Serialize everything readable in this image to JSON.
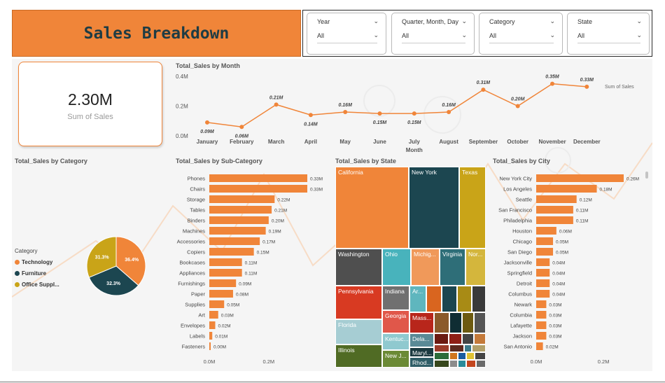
{
  "header": {
    "title": "Sales Breakdown"
  },
  "slicers": [
    {
      "label": "Year",
      "value": "All"
    },
    {
      "label": "Quarter, Month, Day",
      "value": "All"
    },
    {
      "label": "Category",
      "value": "All"
    },
    {
      "label": "State",
      "value": "All"
    }
  ],
  "kpi": {
    "value": "2.30M",
    "label": "Sum of Sales"
  },
  "colors": {
    "orange": "#f08539",
    "teal": "#1c4650",
    "gold": "#c9a418"
  },
  "month_chart": {
    "title": "Total_Sales by Month",
    "legend_label": "Sum of Sales",
    "xlabel": "Month",
    "y_ticks": [
      "0.4M",
      "0.2M",
      "0.0M"
    ],
    "chart_data": {
      "type": "line",
      "categories": [
        "January",
        "February",
        "March",
        "April",
        "May",
        "June",
        "July",
        "August",
        "September",
        "October",
        "November",
        "December"
      ],
      "values": [
        0.09,
        0.06,
        0.21,
        0.14,
        0.16,
        0.15,
        0.15,
        0.16,
        0.31,
        0.2,
        0.35,
        0.33
      ],
      "labels": [
        "0.09M",
        "0.06M",
        "0.21M",
        "0.14M",
        "0.16M",
        "0.15M",
        "0.15M",
        "0.16M",
        "0.31M",
        "0.20M",
        "0.35M",
        "0.33M"
      ],
      "ylim": [
        0,
        0.4
      ]
    }
  },
  "category_chart": {
    "title": "Total_Sales by Category",
    "legend_title": "Category",
    "chart_data": {
      "type": "pie",
      "labels": [
        "Technology",
        "Furniture",
        "Office Suppl..."
      ],
      "values": [
        36.4,
        32.3,
        31.3
      ],
      "value_labels": [
        "36.4%",
        "32.3%",
        "31.3%"
      ],
      "colors": [
        "#f08539",
        "#1c4650",
        "#c9a418"
      ]
    }
  },
  "subcat_chart": {
    "title": "Total_Sales by Sub-Category",
    "x_ticks": [
      "0.0M",
      "0.2M"
    ],
    "chart_data": {
      "type": "bar",
      "categories": [
        "Phones",
        "Chairs",
        "Storage",
        "Tables",
        "Binders",
        "Machines",
        "Accessories",
        "Copiers",
        "Bookcases",
        "Appliances",
        "Furnishings",
        "Paper",
        "Supplies",
        "Art",
        "Envelopes",
        "Labels",
        "Fasteners"
      ],
      "values": [
        0.33,
        0.33,
        0.22,
        0.21,
        0.2,
        0.19,
        0.17,
        0.15,
        0.11,
        0.11,
        0.09,
        0.08,
        0.05,
        0.03,
        0.02,
        0.01,
        0.0
      ],
      "labels": [
        "0.33M",
        "0.33M",
        "0.22M",
        "0.21M",
        "0.20M",
        "0.19M",
        "0.17M",
        "0.15M",
        "0.11M",
        "0.11M",
        "0.09M",
        "0.08M",
        "0.05M",
        "0.03M",
        "0.02M",
        "0.01M",
        "0.00M"
      ]
    }
  },
  "state_chart": {
    "title": "Total_Sales by State",
    "chart_data": {
      "type": "treemap",
      "labels": [
        "California",
        "New York",
        "Texas",
        "Washington",
        "Ohio",
        "Michig...",
        "Virginia",
        "Nor...",
        "Pennsylvania",
        "Indiana",
        "Ar...",
        "Georgia",
        "Florida",
        "Kentuc...",
        "Illinois",
        "New J...",
        "Mass...",
        "Dela...",
        "Maryl...",
        "Rhod..."
      ]
    }
  },
  "city_chart": {
    "title": "Total_Sales by City",
    "x_ticks": [
      "0.0M",
      "0.2M"
    ],
    "chart_data": {
      "type": "bar",
      "categories": [
        "New York City",
        "Los Angeles",
        "Seattle",
        "San Francisco",
        "Philadelphia",
        "Houston",
        "Chicago",
        "San Diego",
        "Jacksonville",
        "Springfield",
        "Detroit",
        "Columbus",
        "Newark",
        "Columbia",
        "Lafayette",
        "Jackson",
        "San Antonio"
      ],
      "values": [
        0.26,
        0.18,
        0.12,
        0.11,
        0.11,
        0.06,
        0.05,
        0.05,
        0.04,
        0.04,
        0.04,
        0.04,
        0.03,
        0.03,
        0.03,
        0.03,
        0.02
      ],
      "labels": [
        "0.26M",
        "0.18M",
        "0.12M",
        "0.11M",
        "0.11M",
        "0.06M",
        "0.05M",
        "0.05M",
        "0.04M",
        "0.04M",
        "0.04M",
        "0.04M",
        "0.03M",
        "0.03M",
        "0.03M",
        "0.03M",
        "0.02M"
      ]
    }
  }
}
